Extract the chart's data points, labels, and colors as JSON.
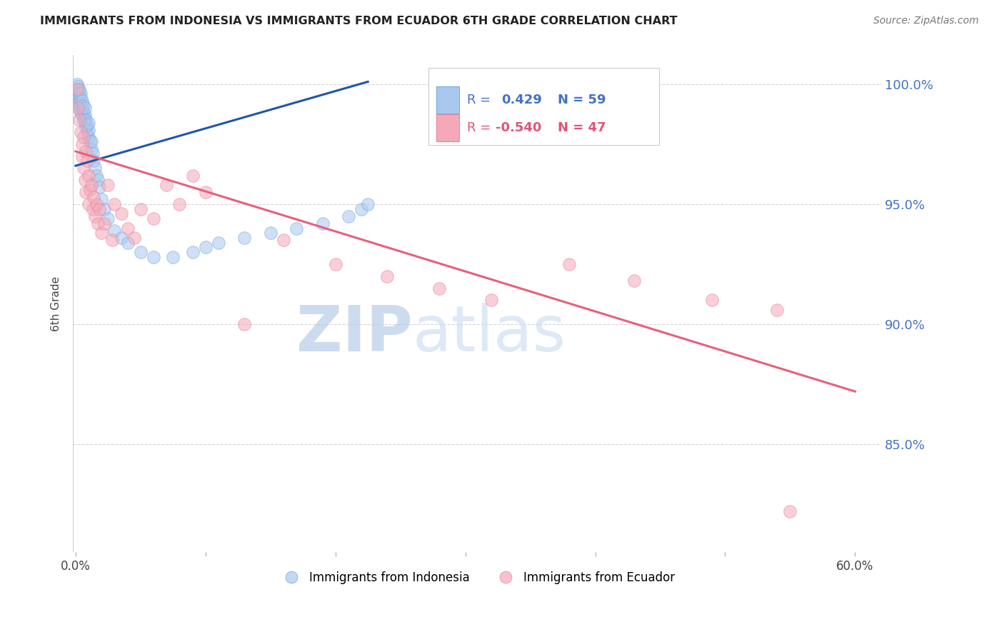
{
  "title": "IMMIGRANTS FROM INDONESIA VS IMMIGRANTS FROM ECUADOR 6TH GRADE CORRELATION CHART",
  "source": "Source: ZipAtlas.com",
  "ylabel": "6th Grade",
  "xlim": [
    -0.002,
    0.62
  ],
  "ylim": [
    0.805,
    1.012
  ],
  "yticks": [
    0.85,
    0.9,
    0.95,
    1.0
  ],
  "xticks": [
    0.0,
    0.1,
    0.2,
    0.3,
    0.4,
    0.5,
    0.6
  ],
  "xtick_labels": [
    "0.0%",
    "",
    "",
    "",
    "",
    "",
    "60.0%"
  ],
  "ytick_labels": [
    "85.0%",
    "90.0%",
    "95.0%",
    "100.0%"
  ],
  "indonesia_color": "#a8c8f0",
  "ecuador_color": "#f4a8b8",
  "indonesia_edge_color": "#7aaad8",
  "ecuador_edge_color": "#e888a0",
  "indonesia_line_color": "#2255aa",
  "ecuador_line_color": "#e8607a",
  "indonesia_R": 0.429,
  "indonesia_N": 59,
  "ecuador_R": -0.54,
  "ecuador_N": 47,
  "legend_label_indonesia": "Immigrants from Indonesia",
  "legend_label_ecuador": "Immigrants from Ecuador",
  "watermark_zip": "ZIP",
  "watermark_atlas": "atlas",
  "background_color": "#ffffff",
  "grid_color": "#cccccc",
  "title_color": "#222222",
  "source_color": "#777777",
  "axis_label_color": "#444444",
  "tick_label_color": "#4472c4",
  "legend_box_color": "#dddddd",
  "indonesia_line_x0": 0.0,
  "indonesia_line_x1": 0.225,
  "indonesia_line_y0": 0.966,
  "indonesia_line_y1": 1.001,
  "ecuador_line_x0": 0.0,
  "ecuador_line_x1": 0.6,
  "ecuador_line_y0": 0.972,
  "ecuador_line_y1": 0.872,
  "ind_x": [
    0.001,
    0.001,
    0.001,
    0.002,
    0.002,
    0.002,
    0.002,
    0.003,
    0.003,
    0.003,
    0.003,
    0.004,
    0.004,
    0.004,
    0.004,
    0.005,
    0.005,
    0.005,
    0.006,
    0.006,
    0.006,
    0.007,
    0.007,
    0.007,
    0.008,
    0.008,
    0.009,
    0.009,
    0.01,
    0.01,
    0.01,
    0.011,
    0.012,
    0.012,
    0.013,
    0.014,
    0.015,
    0.016,
    0.017,
    0.018,
    0.02,
    0.022,
    0.025,
    0.03,
    0.035,
    0.04,
    0.05,
    0.06,
    0.075,
    0.09,
    0.1,
    0.11,
    0.13,
    0.15,
    0.17,
    0.19,
    0.21,
    0.22,
    0.225
  ],
  "ind_y": [
    0.995,
    0.998,
    1.0,
    0.992,
    0.995,
    0.997,
    0.999,
    0.99,
    0.993,
    0.996,
    0.998,
    0.988,
    0.991,
    0.994,
    0.996,
    0.987,
    0.99,
    0.993,
    0.985,
    0.988,
    0.991,
    0.984,
    0.987,
    0.99,
    0.982,
    0.985,
    0.98,
    0.983,
    0.978,
    0.981,
    0.984,
    0.976,
    0.973,
    0.976,
    0.971,
    0.968,
    0.965,
    0.962,
    0.96,
    0.957,
    0.952,
    0.948,
    0.944,
    0.939,
    0.936,
    0.934,
    0.93,
    0.928,
    0.928,
    0.93,
    0.932,
    0.934,
    0.936,
    0.938,
    0.94,
    0.942,
    0.945,
    0.948,
    0.95
  ],
  "ecu_x": [
    0.001,
    0.002,
    0.003,
    0.004,
    0.005,
    0.005,
    0.006,
    0.006,
    0.007,
    0.008,
    0.008,
    0.009,
    0.01,
    0.01,
    0.011,
    0.012,
    0.013,
    0.014,
    0.015,
    0.016,
    0.017,
    0.018,
    0.02,
    0.022,
    0.025,
    0.028,
    0.03,
    0.035,
    0.04,
    0.045,
    0.05,
    0.06,
    0.07,
    0.08,
    0.09,
    0.1,
    0.13,
    0.16,
    0.2,
    0.24,
    0.28,
    0.32,
    0.38,
    0.43,
    0.49,
    0.54,
    0.55
  ],
  "ecu_y": [
    0.998,
    0.99,
    0.985,
    0.98,
    0.975,
    0.97,
    0.965,
    0.978,
    0.96,
    0.972,
    0.955,
    0.968,
    0.962,
    0.95,
    0.956,
    0.958,
    0.948,
    0.953,
    0.945,
    0.95,
    0.942,
    0.948,
    0.938,
    0.942,
    0.958,
    0.935,
    0.95,
    0.946,
    0.94,
    0.936,
    0.948,
    0.944,
    0.958,
    0.95,
    0.962,
    0.955,
    0.9,
    0.935,
    0.925,
    0.92,
    0.915,
    0.91,
    0.925,
    0.918,
    0.91,
    0.906,
    0.822
  ]
}
